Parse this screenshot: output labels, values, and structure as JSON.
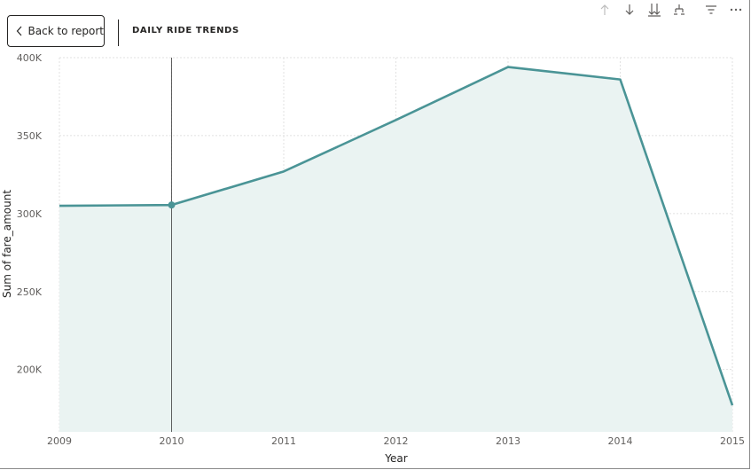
{
  "header": {
    "back_label": "Back to report",
    "title": "DAILY RIDE TRENDS"
  },
  "toolbar": {
    "icons": [
      "drill-up-icon",
      "drill-down-icon",
      "expand-all-icon",
      "hierarchy-icon",
      "filter-icon",
      "more-options-icon"
    ]
  },
  "colors": {
    "line": "#4a9496",
    "area": "#eaf3f2",
    "grid": "#e1e1e1",
    "crosshair": "#3a3a3a"
  },
  "chart_data": {
    "type": "area",
    "xlabel": "Year",
    "ylabel": "Sum of fare_amount",
    "x": [
      "2009",
      "2010",
      "2011",
      "2012",
      "2013",
      "2014",
      "2015"
    ],
    "series": [
      {
        "values": [
          305000,
          305500,
          327000,
          360000,
          394000,
          386000,
          177000
        ]
      }
    ],
    "yticks": [
      "200K",
      "250K",
      "300K",
      "350K",
      "400K"
    ],
    "ytick_values": [
      200000,
      250000,
      300000,
      350000,
      400000
    ],
    "ylim": [
      160000,
      400000
    ],
    "highlight_index": 1,
    "grid": true
  }
}
